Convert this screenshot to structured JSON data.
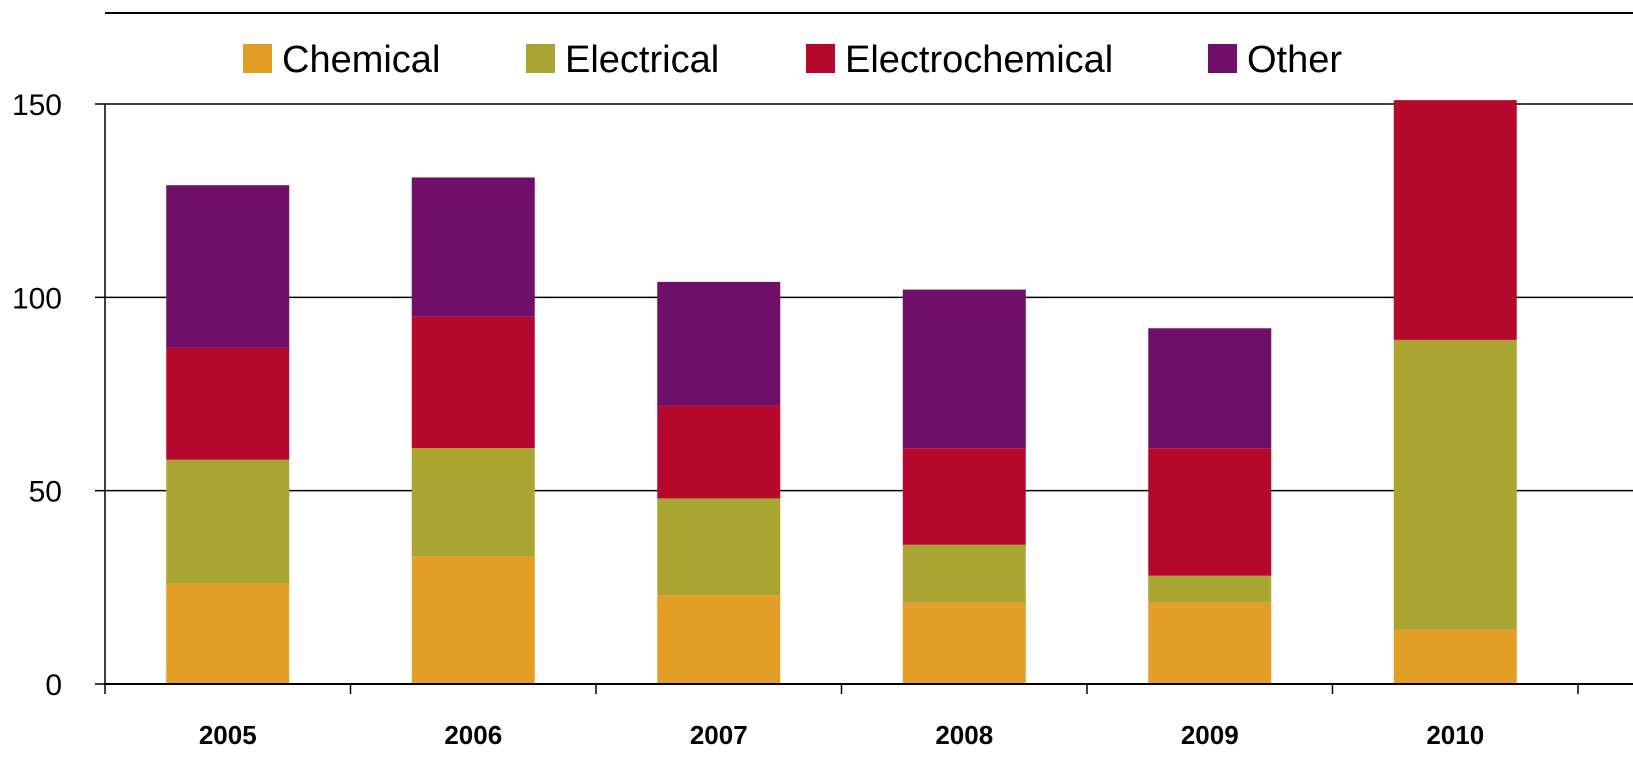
{
  "chart_data": {
    "type": "bar",
    "stacked": true,
    "categories": [
      "2005",
      "2006",
      "2007",
      "2008",
      "2009",
      "2010"
    ],
    "series": [
      {
        "name": "Chemical",
        "color": "#E39E26",
        "values": [
          26,
          33,
          23,
          21,
          21,
          14
        ]
      },
      {
        "name": "Electrical",
        "color": "#AAA533",
        "values": [
          32,
          28,
          25,
          15,
          7,
          75
        ]
      },
      {
        "name": "Electrochemical",
        "color": "#B4082D",
        "values": [
          29,
          34,
          24,
          25,
          33,
          62
        ]
      },
      {
        "name": "Other",
        "color": "#6F0F69",
        "values": [
          42,
          36,
          32,
          41,
          31,
          0
        ]
      }
    ],
    "ylim": [
      0,
      150
    ],
    "yticks": [
      "0",
      "50",
      "100",
      "150"
    ],
    "grid": true,
    "legend": "top",
    "title": "",
    "xlabel": "",
    "ylabel": ""
  }
}
